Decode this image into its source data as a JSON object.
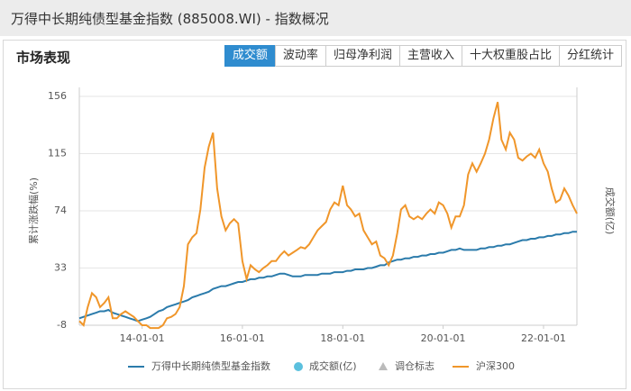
{
  "header": {
    "title": "万得中长期纯债型基金指数 (885008.WI) - 指数概况"
  },
  "section_title": "市场表现",
  "tabs": [
    "成交额",
    "波动率",
    "归母净利润",
    "主营收入",
    "十大权重股占比",
    "分红统计"
  ],
  "active_tab": 0,
  "chart_data": {
    "type": "line",
    "y_label": "累计涨跌幅(%)",
    "y2_label": "成交额(亿)",
    "x": [
      "2012-10-01",
      "2012-11-01",
      "2012-12-01",
      "2013-01-01",
      "2013-02-01",
      "2013-03-01",
      "2013-04-01",
      "2013-05-01",
      "2013-06-01",
      "2013-07-01",
      "2013-08-01",
      "2013-09-01",
      "2013-10-01",
      "2013-11-01",
      "2013-12-01",
      "2014-01-01",
      "2014-02-01",
      "2014-03-01",
      "2014-04-01",
      "2014-05-01",
      "2014-06-01",
      "2014-07-01",
      "2014-08-01",
      "2014-09-01",
      "2014-10-01",
      "2014-11-01",
      "2014-12-01",
      "2015-01-01",
      "2015-02-01",
      "2015-03-01",
      "2015-04-01",
      "2015-05-01",
      "2015-06-01",
      "2015-07-01",
      "2015-08-01",
      "2015-09-01",
      "2015-10-01",
      "2015-11-01",
      "2015-12-01",
      "2016-01-01",
      "2016-02-01",
      "2016-03-01",
      "2016-04-01",
      "2016-05-01",
      "2016-06-01",
      "2016-07-01",
      "2016-08-01",
      "2016-09-01",
      "2016-10-01",
      "2016-11-01",
      "2016-12-01",
      "2017-01-01",
      "2017-02-01",
      "2017-03-01",
      "2017-04-01",
      "2017-05-01",
      "2017-06-01",
      "2017-07-01",
      "2017-08-01",
      "2017-09-01",
      "2017-10-01",
      "2017-11-01",
      "2017-12-01",
      "2018-01-01",
      "2018-02-01",
      "2018-03-01",
      "2018-04-01",
      "2018-05-01",
      "2018-06-01",
      "2018-07-01",
      "2018-08-01",
      "2018-09-01",
      "2018-10-01",
      "2018-11-01",
      "2018-12-01",
      "2019-01-01",
      "2019-02-01",
      "2019-03-01",
      "2019-04-01",
      "2019-05-01",
      "2019-06-01",
      "2019-07-01",
      "2019-08-01",
      "2019-09-01",
      "2019-10-01",
      "2019-11-01",
      "2019-12-01",
      "2020-01-01",
      "2020-02-01",
      "2020-03-01",
      "2020-04-01",
      "2020-05-01",
      "2020-06-01",
      "2020-07-01",
      "2020-08-01",
      "2020-09-01",
      "2020-10-01",
      "2020-11-01",
      "2020-12-01",
      "2021-01-01",
      "2021-02-01",
      "2021-03-01",
      "2021-04-01",
      "2021-05-01",
      "2021-06-01",
      "2021-07-01",
      "2021-08-01",
      "2021-09-01",
      "2021-10-01",
      "2021-11-01",
      "2021-12-01",
      "2022-01-01",
      "2022-02-01",
      "2022-03-01",
      "2022-04-01",
      "2022-05-01",
      "2022-06-01",
      "2022-07-01",
      "2022-08-01",
      "2022-09-01"
    ],
    "series": [
      {
        "name": "万得中长期纯债型基金指数",
        "color": "#2b7bab",
        "values": [
          -3,
          -2,
          -1,
          0,
          1,
          2,
          2,
          3,
          1,
          0,
          -1,
          -2,
          -3,
          -4,
          -5,
          -4,
          -3,
          -2,
          0,
          2,
          3,
          5,
          6,
          7,
          8,
          9,
          10,
          12,
          13,
          14,
          15,
          16,
          18,
          19,
          20,
          20,
          21,
          22,
          23,
          23,
          24,
          25,
          25,
          26,
          26,
          27,
          27,
          28,
          29,
          29,
          28,
          27,
          27,
          27,
          28,
          28,
          28,
          28,
          29,
          29,
          29,
          30,
          30,
          30,
          31,
          31,
          32,
          32,
          32,
          33,
          33,
          34,
          35,
          35,
          37,
          38,
          39,
          39,
          40,
          40,
          41,
          41,
          42,
          42,
          43,
          43,
          44,
          44,
          45,
          46,
          46,
          47,
          46,
          46,
          46,
          46,
          47,
          47,
          48,
          48,
          49,
          49,
          50,
          50,
          51,
          52,
          53,
          53,
          54,
          54,
          55,
          55,
          56,
          56,
          57,
          57,
          58,
          58,
          59,
          59
        ]
      },
      {
        "name": "沪深300",
        "color": "#f0962a",
        "values": [
          -5,
          -8,
          5,
          15,
          12,
          5,
          8,
          12,
          -3,
          -3,
          0,
          2,
          0,
          -2,
          -5,
          -8,
          -8,
          -10,
          -10,
          -10,
          -8,
          -3,
          -2,
          0,
          5,
          20,
          50,
          55,
          58,
          75,
          105,
          120,
          130,
          90,
          70,
          60,
          65,
          68,
          65,
          38,
          25,
          35,
          32,
          30,
          33,
          35,
          38,
          38,
          42,
          45,
          42,
          44,
          46,
          48,
          47,
          50,
          55,
          60,
          63,
          66,
          75,
          80,
          78,
          92,
          78,
          75,
          70,
          72,
          60,
          55,
          50,
          52,
          42,
          40,
          35,
          42,
          58,
          75,
          78,
          70,
          68,
          70,
          68,
          72,
          75,
          72,
          80,
          78,
          72,
          62,
          70,
          70,
          78,
          100,
          108,
          102,
          108,
          115,
          125,
          140,
          152,
          125,
          118,
          130,
          125,
          112,
          110,
          113,
          115,
          112,
          118,
          108,
          102,
          90,
          80,
          82,
          90,
          85,
          78,
          72
        ]
      }
    ],
    "legend_markers": [
      {
        "name": "成交额(亿)",
        "color": "#5bc0de"
      },
      {
        "name": "调仓标志",
        "color": "#bbbbbb"
      }
    ],
    "xlim": [
      "2012-10-01",
      "2022-09-01"
    ],
    "xticks": [
      {
        "value": "2014-01-01",
        "label": "14-01-01"
      },
      {
        "value": "2016-01-01",
        "label": "16-01-01"
      },
      {
        "value": "2018-01-01",
        "label": "18-01-01"
      },
      {
        "value": "2020-01-01",
        "label": "20-01-01"
      },
      {
        "value": "2022-01-01",
        "label": "22-01-01"
      }
    ],
    "ylim": [
      -8,
      156
    ],
    "yticks": [
      -8,
      33,
      74,
      115,
      156
    ],
    "grid": true
  }
}
